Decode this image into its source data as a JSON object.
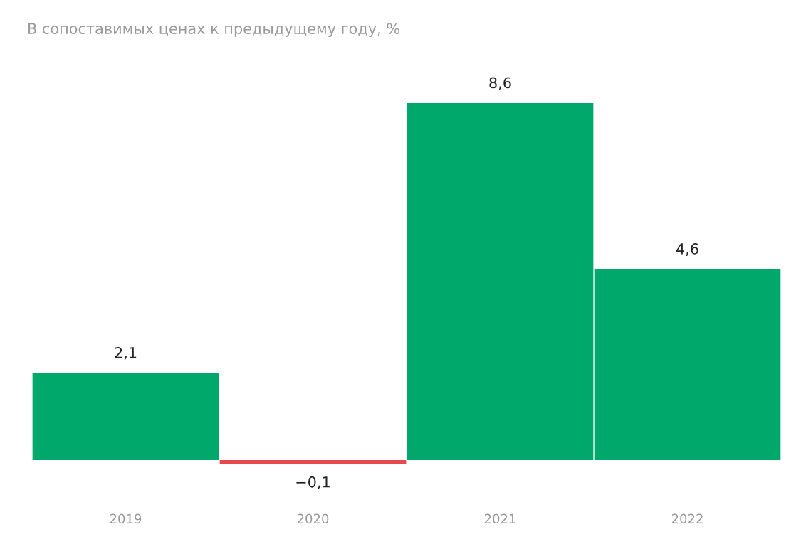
{
  "chart_data": {
    "type": "bar",
    "title": "В сопоставимых ценах к предыдущему году, %",
    "categories": [
      "2019",
      "2020",
      "2021",
      "2022"
    ],
    "values": [
      2.1,
      -0.1,
      8.6,
      4.6
    ],
    "colors": [
      "#00a86b",
      "#e5484d",
      "#00a86b",
      "#00a86b"
    ],
    "value_labels": [
      "2,1",
      "−0,1",
      "8,6",
      "4,6"
    ],
    "grid": false,
    "legend": false
  }
}
